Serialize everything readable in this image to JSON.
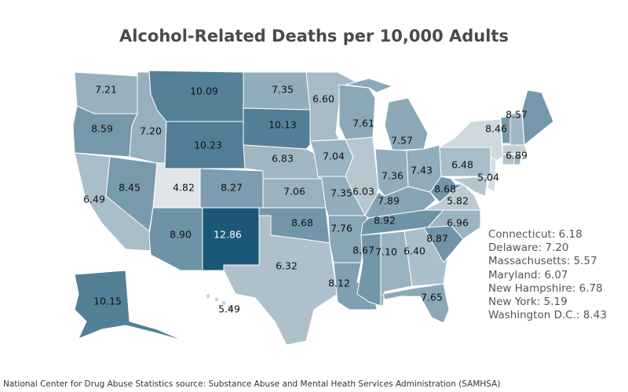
{
  "title": "Alcohol-Related Deaths per 10,000 Adults",
  "source": "National Center for Drug Abuse Statistics source: Substance Abuse and Mental Heath Services Administration (SAMHSA)",
  "colors": {
    "low": "#e1e5e8",
    "high": "#1b5878",
    "border": "#ffffff"
  },
  "value_range": [
    4.82,
    12.86
  ],
  "states": {
    "WA": 7.21,
    "OR": 8.59,
    "CA": 6.49,
    "NV": 8.45,
    "ID": 7.2,
    "MT": 10.09,
    "WY": 10.23,
    "UT": 4.82,
    "CO": 8.27,
    "AZ": 8.9,
    "NM": 12.86,
    "ND": 7.35,
    "SD": 10.13,
    "NE": 6.83,
    "KS": 7.06,
    "OK": 8.68,
    "TX": 6.32,
    "MN": 6.6,
    "IA": 7.04,
    "MO": 7.35,
    "AR": 7.76,
    "LA": 8.12,
    "WI": 7.61,
    "IL": 6.03,
    "MI": 7.57,
    "IN": 7.36,
    "OH": 7.43,
    "KY": 7.89,
    "TN": 8.92,
    "MS": 8.67,
    "AL": 7.1,
    "GA": 6.4,
    "FL": 7.65,
    "SC": 8.87,
    "NC": 6.96,
    "VA": 5.82,
    "WV": 8.68,
    "PA": 6.48,
    "NJ": 5.04,
    "RI": 6.89,
    "VT": 8.46,
    "ME": 8.57,
    "AK": 10.15,
    "HI": 5.49,
    "NY": 5.19,
    "CT": 6.18,
    "DE": 7.2,
    "MA": 5.57,
    "MD": 6.07,
    "NH": 6.78,
    "DC": 8.43
  },
  "side_legend": [
    "Connecticut: 6.18",
    "Delaware: 7.20",
    "Massachusetts: 5.57",
    "Maryland: 6.07",
    "New Hampshire: 6.78",
    "New York: 5.19",
    "Washington D.C.: 8.43"
  ]
}
